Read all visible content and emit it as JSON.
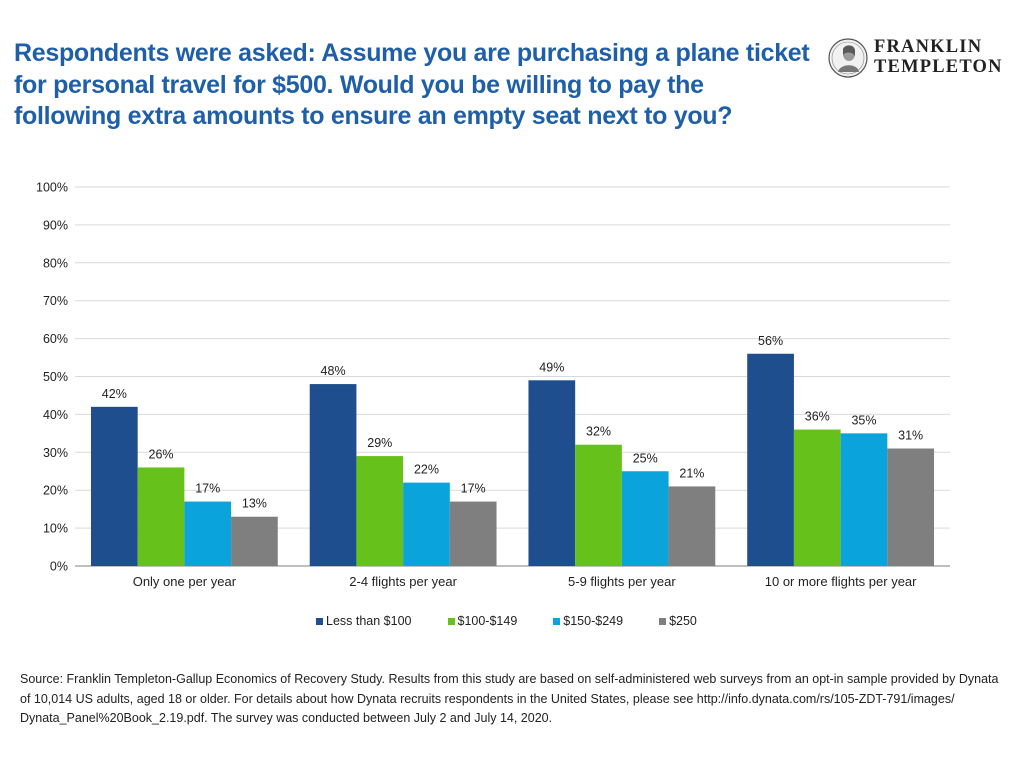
{
  "title": "Respondents were asked: Assume you are purchasing a plane ticket for personal travel for $500. Would you be willing to pay the following extra amounts to ensure an empty seat next to you?",
  "logo": {
    "line1": "FRANKLIN",
    "line2": "TEMPLETON"
  },
  "chart_data": {
    "type": "bar",
    "categories": [
      "Only one per year",
      "2-4 flights per year",
      "5-9 flights per year",
      "10 or more flights per year"
    ],
    "series": [
      {
        "name": "Less than $100",
        "color": "#1e4e8e",
        "values": [
          42,
          48,
          49,
          56
        ],
        "labels": [
          "42%",
          "48%",
          "49%",
          "56%"
        ]
      },
      {
        "name": "$100-$149",
        "color": "#66c21a",
        "values": [
          26,
          29,
          32,
          36
        ],
        "labels": [
          "26%",
          "29%",
          "32%",
          "36%"
        ]
      },
      {
        "name": "$150-$249",
        "color": "#0aa3dc",
        "values": [
          17,
          22,
          25,
          35
        ],
        "labels": [
          "17%",
          "22%",
          "25%",
          "35%"
        ]
      },
      {
        "name": "$250",
        "color": "#7f7f7f",
        "values": [
          13,
          17,
          21,
          31
        ],
        "labels": [
          "13%",
          "17%",
          "21%",
          "31%"
        ]
      }
    ],
    "yticks": [
      "0%",
      "10%",
      "20%",
      "30%",
      "40%",
      "50%",
      "60%",
      "70%",
      "80%",
      "90%",
      "100%"
    ],
    "ylim": [
      0,
      100
    ],
    "grid": true,
    "legend_position": "bottom"
  },
  "source": "Source: Franklin Templeton-Gallup Economics of Recovery Study. Results from this study are based on self-administered web surveys from an opt-in sample provided by Dynata of 10,014 US adults, aged 18 or older. For details about how Dynata recruits respondents in the United States, please see http://info.dynata.com/rs/105-ZDT-791/images/ Dynata_Panel%20Book_2.19.pdf. The survey was conducted between July 2 and July 14, 2020."
}
